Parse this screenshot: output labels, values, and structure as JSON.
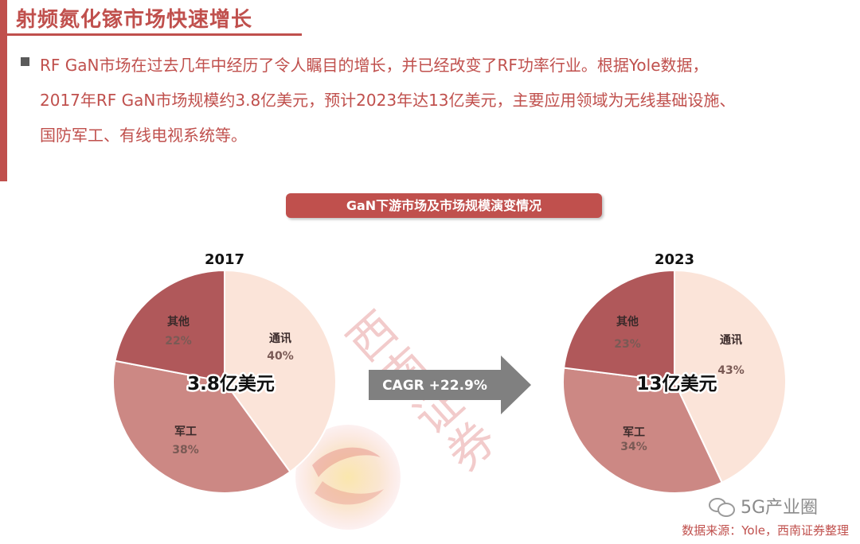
{
  "slide": {
    "title": "射频氮化镓市场快速增长",
    "bullet_lines": [
      "RF GaN市场在过去几年中经历了令人瞩目的增长，并已经改变了RF功率行业。根据Yole数据，",
      "2017年RF GaN市场规模约3.8亿美元，预计2023年达13亿美元，主要应用领域为无线基础设施、",
      "国防军工、有线电视系统等。"
    ],
    "chart_banner": "GaN下游市场及市场规模演变情况",
    "cagr_label": "CAGR +22.9%",
    "source": "数据来源：Yole，西南证券整理",
    "wechat_label": "5G产业圈",
    "watermark_text": [
      "西",
      "南",
      "证",
      "券"
    ]
  },
  "colors": {
    "accent": "#c0504d",
    "slice_comm": "#fbe4d9",
    "slice_military": "#cc8884",
    "slice_other": "#b0585a",
    "arrow": "#808080"
  },
  "chart_data": [
    {
      "type": "pie",
      "title": "2017",
      "center_label": "3.8亿美元",
      "slices": [
        {
          "label": "通讯",
          "value": 40,
          "display": "40%"
        },
        {
          "label": "军工",
          "value": 38,
          "display": "38%"
        },
        {
          "label": "其他",
          "value": 22,
          "display": "22%"
        }
      ]
    },
    {
      "type": "pie",
      "title": "2023",
      "center_label": "13亿美元",
      "slices": [
        {
          "label": "通讯",
          "value": 43,
          "display": "43%"
        },
        {
          "label": "军工",
          "value": 34,
          "display": "34%"
        },
        {
          "label": "其他",
          "value": 23,
          "display": "23%"
        }
      ]
    }
  ]
}
